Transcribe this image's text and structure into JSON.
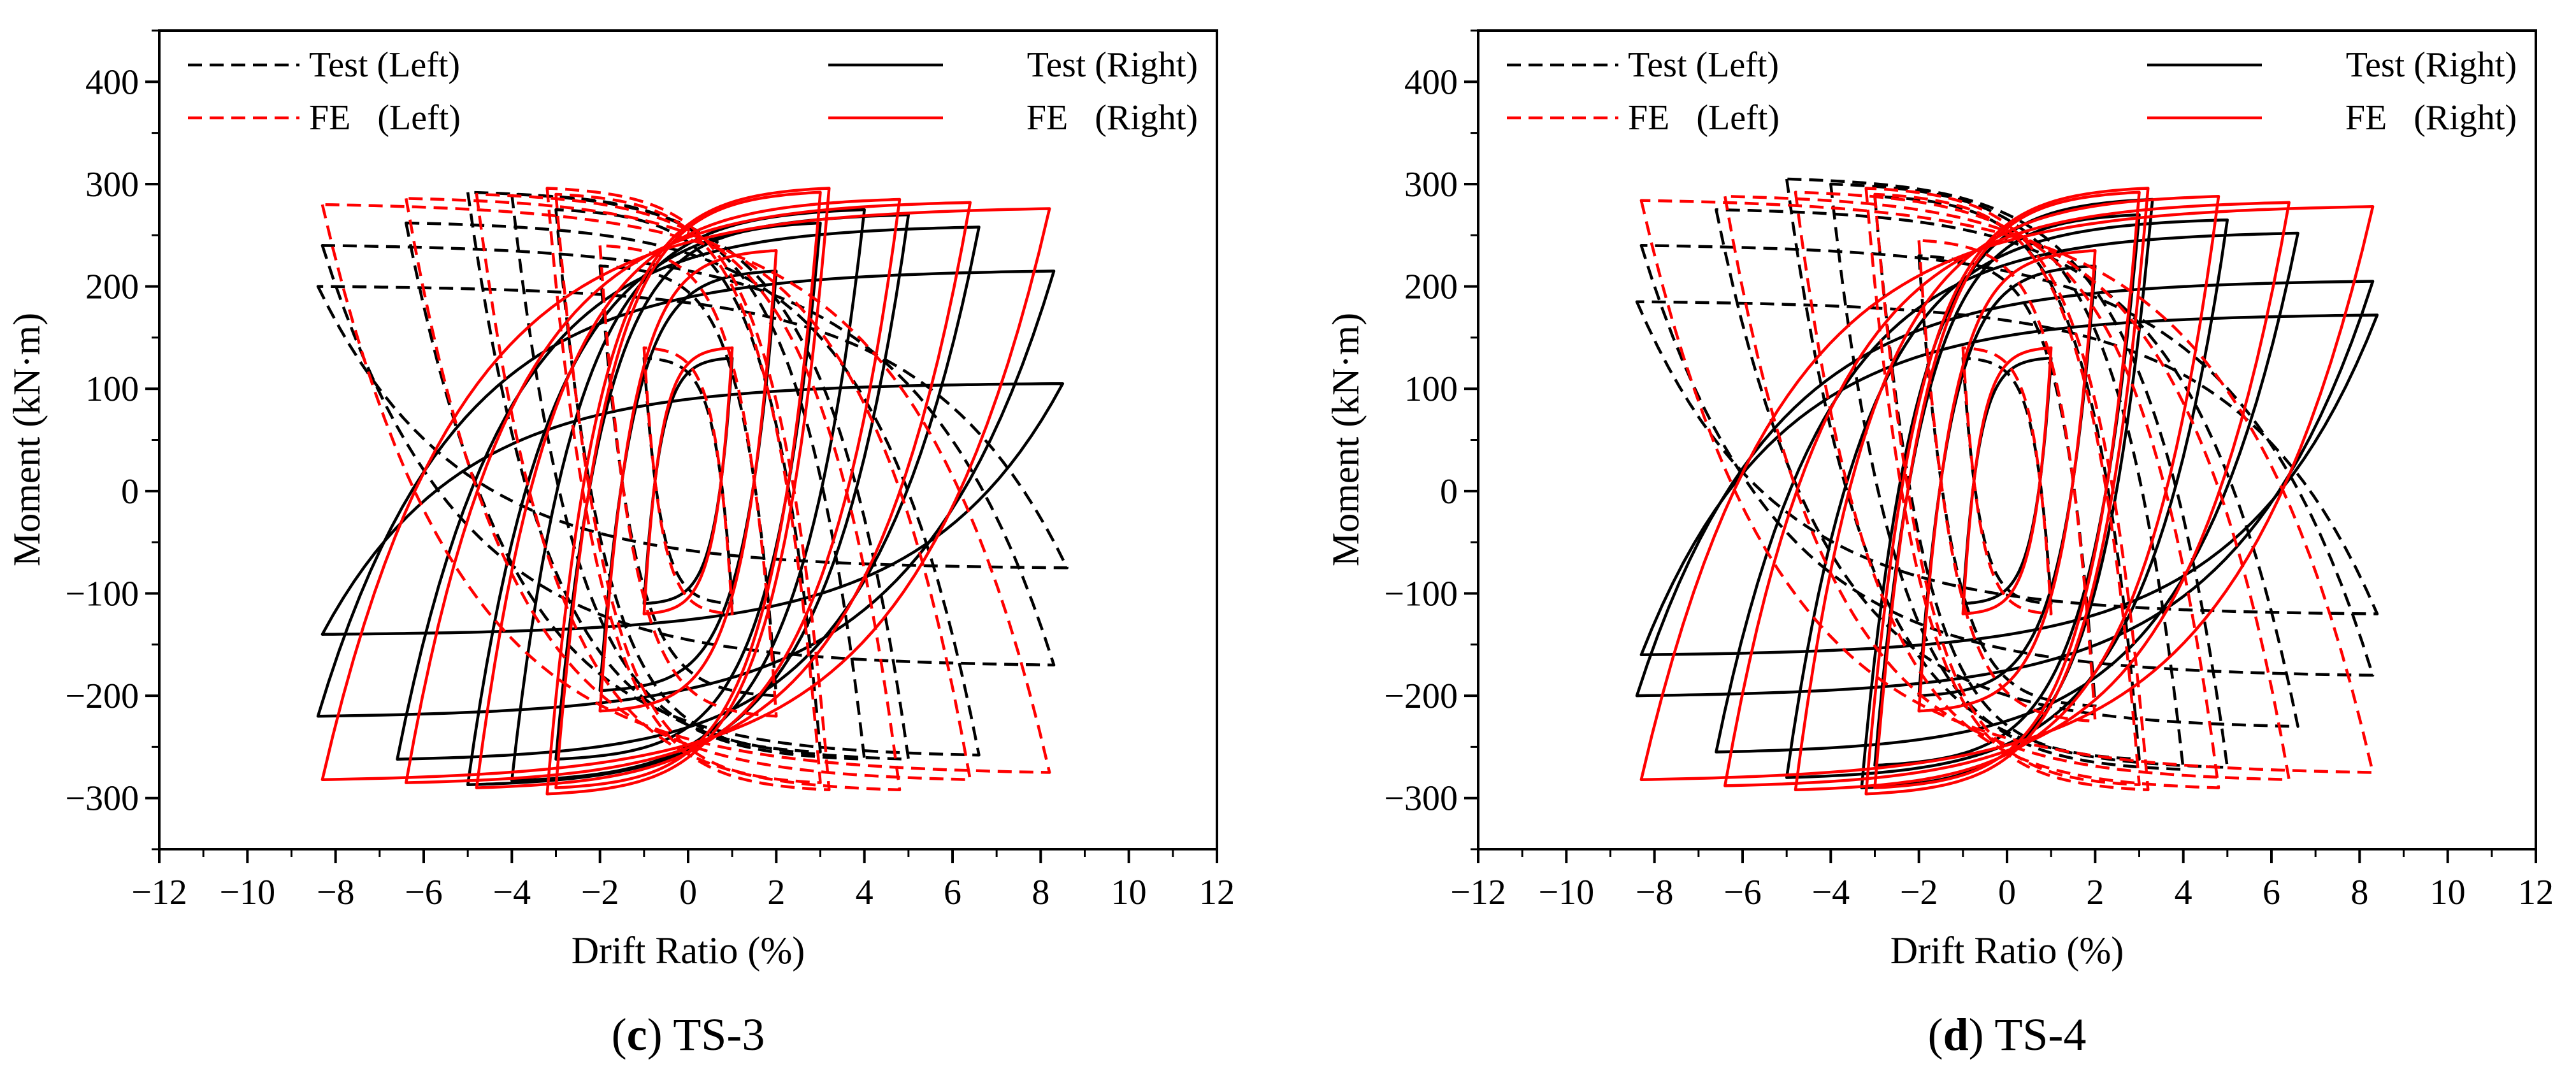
{
  "chart_data": [
    {
      "type": "line",
      "caption_letter": "c",
      "caption_name": "TS-3",
      "caption_open": "(",
      "caption_close": ") ",
      "xlabel": "Drift Ratio (%)",
      "ylabel": "Moment (kN·m)",
      "xlim": [
        -12,
        12
      ],
      "ylim": [
        -350,
        450
      ],
      "xticks": [
        -12,
        -10,
        -8,
        -6,
        -4,
        -2,
        0,
        2,
        4,
        6,
        8,
        10,
        12
      ],
      "yticks": [
        -300,
        -200,
        -100,
        0,
        100,
        200,
        300,
        400
      ],
      "xtick_labels": [
        "−12",
        "−10",
        "−8",
        "−6",
        "−4",
        "−2",
        "0",
        "2",
        "4",
        "6",
        "8",
        "10",
        "12"
      ],
      "ytick_labels": [
        "−300",
        "−200",
        "−100",
        "0",
        "100",
        "200",
        "300",
        "400"
      ],
      "legend": [
        {
          "label": "Test (Left)",
          "color": "#000000",
          "dash": true,
          "position": "top-left"
        },
        {
          "label": "FE   (Left)",
          "color": "#ff0000",
          "dash": true,
          "position": "top-left"
        },
        {
          "label": "Test (Right)",
          "color": "#000000",
          "dash": false,
          "position": "top-right"
        },
        {
          "label": "FE   (Right)",
          "color": "#ff0000",
          "dash": false,
          "position": "top-right"
        }
      ],
      "series": [
        {
          "name": "Test (Right)",
          "color": "#000000",
          "dash": false,
          "group": "right",
          "loops": [
            [
              1.0,
              130,
              -1.0,
              -110
            ],
            [
              2.0,
              215,
              -2.0,
              -195
            ],
            [
              3.0,
              262,
              -3.0,
              -262
            ],
            [
              4.0,
              275,
              -4.0,
              -283
            ],
            [
              5.0,
              270,
              -5.0,
              -287
            ],
            [
              6.6,
              258,
              -6.6,
              -262
            ],
            [
              8.3,
              215,
              -8.4,
              -220
            ],
            [
              8.5,
              105,
              -8.3,
              -140
            ]
          ]
        },
        {
          "name": "FE (Right)",
          "color": "#ff0000",
          "dash": false,
          "group": "right",
          "loops": [
            [
              1.0,
              140,
              -1.0,
              -120
            ],
            [
              2.0,
              235,
              -2.0,
              -215
            ],
            [
              3.0,
              292,
              -3.0,
              -290
            ],
            [
              3.2,
              296,
              -3.2,
              -296
            ],
            [
              4.8,
              285,
              -4.8,
              -290
            ],
            [
              6.4,
              282,
              -6.4,
              -285
            ],
            [
              8.2,
              276,
              -8.3,
              -282
            ]
          ]
        },
        {
          "name": "Test (Left)",
          "color": "#000000",
          "dash": true,
          "group": "left",
          "loops": [
            [
              1.0,
              -110,
              -1.0,
              130
            ],
            [
              2.0,
              -200,
              -2.0,
              220
            ],
            [
              3.0,
              -255,
              -3.0,
              275
            ],
            [
              4.0,
              -262,
              -4.0,
              290
            ],
            [
              5.0,
              -262,
              -5.0,
              292
            ],
            [
              6.6,
              -258,
              -6.4,
              262
            ],
            [
              8.3,
              -170,
              -8.3,
              240
            ],
            [
              8.6,
              -75,
              -8.4,
              200
            ]
          ]
        },
        {
          "name": "FE (Left)",
          "color": "#ff0000",
          "dash": true,
          "group": "left",
          "loops": [
            [
              1.0,
              -120,
              -1.0,
              140
            ],
            [
              2.0,
              -220,
              -2.0,
              240
            ],
            [
              3.0,
              -285,
              -3.0,
              290
            ],
            [
              3.2,
              -292,
              -3.2,
              296
            ],
            [
              4.8,
              -292,
              -4.8,
              290
            ],
            [
              6.4,
              -282,
              -6.4,
              286
            ],
            [
              8.2,
              -275,
              -8.3,
              280
            ]
          ]
        }
      ]
    },
    {
      "type": "line",
      "caption_letter": "d",
      "caption_name": "TS-4",
      "caption_open": "(",
      "caption_close": ") ",
      "xlabel": "Drift Ratio (%)",
      "ylabel": "Moment (kN·m)",
      "xlim": [
        -12,
        12
      ],
      "ylim": [
        -350,
        450
      ],
      "xticks": [
        -12,
        -10,
        -8,
        -6,
        -4,
        -2,
        0,
        2,
        4,
        6,
        8,
        10,
        12
      ],
      "yticks": [
        -300,
        -200,
        -100,
        0,
        100,
        200,
        300,
        400
      ],
      "xtick_labels": [
        "−12",
        "−10",
        "−8",
        "−6",
        "−4",
        "−2",
        "0",
        "2",
        "4",
        "6",
        "8",
        "10",
        "12"
      ],
      "ytick_labels": [
        "−300",
        "−200",
        "−100",
        "0",
        "100",
        "200",
        "300",
        "400"
      ],
      "legend": [
        {
          "label": "Test (Left)",
          "color": "#000000",
          "dash": true,
          "position": "top-left"
        },
        {
          "label": "FE   (Left)",
          "color": "#ff0000",
          "dash": true,
          "position": "top-left"
        },
        {
          "label": "Test (Right)",
          "color": "#000000",
          "dash": false,
          "position": "top-right"
        },
        {
          "label": "FE   (Right)",
          "color": "#ff0000",
          "dash": false,
          "position": "top-right"
        }
      ],
      "series": [
        {
          "name": "Test (Right)",
          "color": "#000000",
          "dash": false,
          "group": "right",
          "loops": [
            [
              1.0,
              130,
              -1.0,
              -110
            ],
            [
              2.0,
              220,
              -2.0,
              -200
            ],
            [
              3.0,
              270,
              -3.0,
              -268
            ],
            [
              3.3,
              285,
              -3.3,
              -290
            ],
            [
              5.0,
              265,
              -5.0,
              -280
            ],
            [
              6.6,
              252,
              -6.6,
              -255
            ],
            [
              8.3,
              205,
              -8.4,
              -200
            ],
            [
              8.4,
              172,
              -8.3,
              -160
            ]
          ]
        },
        {
          "name": "FE (Right)",
          "color": "#ff0000",
          "dash": false,
          "group": "right",
          "loops": [
            [
              1.0,
              140,
              -1.0,
              -120
            ],
            [
              2.0,
              235,
              -2.0,
              -215
            ],
            [
              3.0,
              292,
              -3.0,
              -290
            ],
            [
              3.2,
              296,
              -3.2,
              -296
            ],
            [
              4.8,
              288,
              -4.8,
              -292
            ],
            [
              6.4,
              282,
              -6.4,
              -288
            ],
            [
              8.3,
              278,
              -8.3,
              -282
            ]
          ]
        },
        {
          "name": "Test (Left)",
          "color": "#000000",
          "dash": true,
          "group": "left",
          "loops": [
            [
              1.0,
              -110,
              -1.0,
              130
            ],
            [
              2.0,
              -210,
              -2.0,
              230
            ],
            [
              3.0,
              -262,
              -3.0,
              288
            ],
            [
              4.0,
              -272,
              -4.0,
              300
            ],
            [
              5.0,
              -270,
              -5.0,
              305
            ],
            [
              6.6,
              -230,
              -6.6,
              275
            ],
            [
              8.3,
              -180,
              -8.3,
              240
            ],
            [
              8.4,
              -120,
              -8.4,
              185
            ]
          ]
        },
        {
          "name": "FE (Left)",
          "color": "#ff0000",
          "dash": true,
          "group": "left",
          "loops": [
            [
              1.0,
              -120,
              -1.0,
              140
            ],
            [
              2.0,
              -225,
              -2.0,
              245
            ],
            [
              3.0,
              -287,
              -3.0,
              290
            ],
            [
              3.2,
              -292,
              -3.2,
              296
            ],
            [
              4.8,
              -290,
              -4.8,
              292
            ],
            [
              6.4,
              -282,
              -6.4,
              288
            ],
            [
              8.3,
              -275,
              -8.3,
              284
            ]
          ]
        }
      ]
    }
  ]
}
